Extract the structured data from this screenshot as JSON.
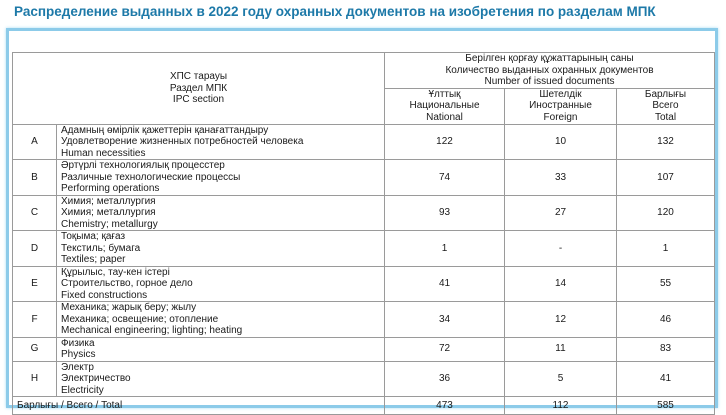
{
  "title": "Распределение выданных в 2022 году охранных документов на изобретения по разделам МПК",
  "header": {
    "section_col": [
      "ХПС тарауы",
      "Раздел МПК",
      "IPC section"
    ],
    "count_group": [
      "Берілген қорғау құжаттарының саны",
      "Количество выданных охранных документов",
      "Number of issued documents"
    ],
    "national": [
      "Ұлттық",
      "Национальные",
      "National"
    ],
    "foreign": [
      "Шетелдік",
      "Иностранные",
      "Foreign"
    ],
    "total": [
      "Барлығы",
      "Всего",
      "Total"
    ]
  },
  "rows": [
    {
      "letter": "A",
      "desc": [
        "Адамның өмірлік қажеттерін қанағаттандыру",
        "Удовлетворение жизненных потребностей человека",
        "Human necessities"
      ],
      "national": "122",
      "foreign": "10",
      "total": "132"
    },
    {
      "letter": "B",
      "desc": [
        "Әртүрлі технологиялық процесстер",
        "Различные технологические процессы",
        "Performing operations"
      ],
      "national": "74",
      "foreign": "33",
      "total": "107"
    },
    {
      "letter": "C",
      "desc": [
        "Химия; металлургия",
        "Химия; металлургия",
        "Chemistry; metallurgy"
      ],
      "national": "93",
      "foreign": "27",
      "total": "120"
    },
    {
      "letter": "D",
      "desc": [
        "Тоқыма; қағаз",
        "Текстиль; бумага",
        "Textiles; paper"
      ],
      "national": "1",
      "foreign": "-",
      "total": "1"
    },
    {
      "letter": "E",
      "desc": [
        "Құрылыс, тау-кен істері",
        "Строительство, горное дело",
        "Fixed constructions"
      ],
      "national": "41",
      "foreign": "14",
      "total": "55"
    },
    {
      "letter": "F",
      "desc": [
        "Механика; жарық беру; жылу",
        "Механика; освещение; отопление",
        "Mechanical engineering; lighting; heating"
      ],
      "national": "34",
      "foreign": "12",
      "total": "46"
    },
    {
      "letter": "G",
      "desc": [
        "Физика",
        "Physics"
      ],
      "national": "72",
      "foreign": "11",
      "total": "83"
    },
    {
      "letter": "H",
      "desc": [
        "Электр",
        "Электричество",
        "Electricity"
      ],
      "national": "36",
      "foreign": "5",
      "total": "41"
    }
  ],
  "total_row": {
    "label": "Барлығы / Всего / Total",
    "national": "473",
    "foreign": "112",
    "total": "585"
  }
}
